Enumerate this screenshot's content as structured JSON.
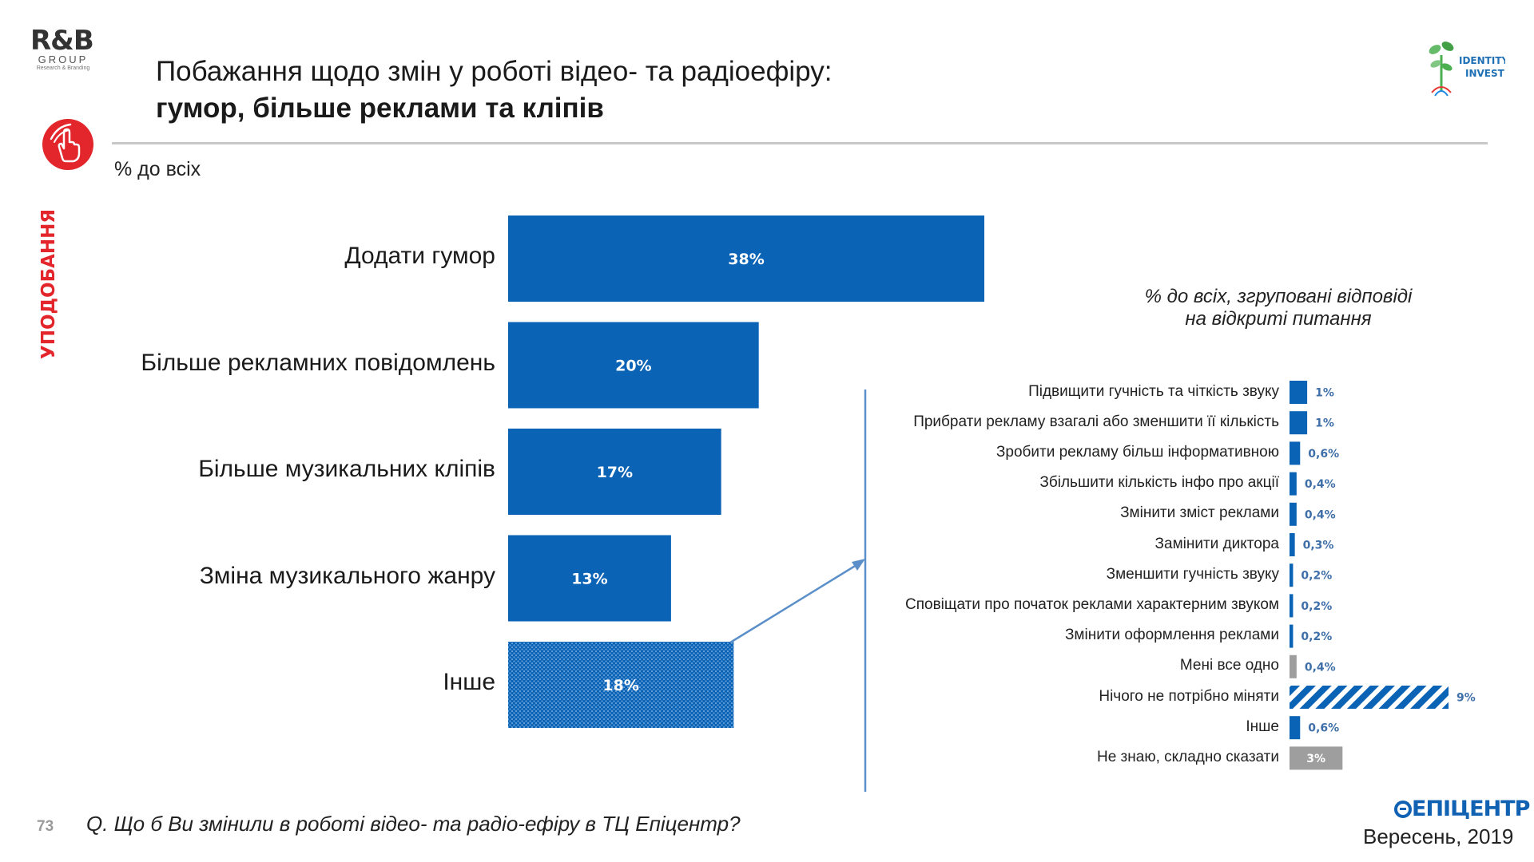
{
  "header": {
    "title_line1": "Побажання щодо змін у роботі відео- та радіоефіру:",
    "title_line2": "гумор, більше реклами та кліпів",
    "logo_rb": {
      "main": "R&B",
      "sub": "GROUP",
      "tagline": "Research & Branding"
    },
    "logo_identity": {
      "line1": "IDENTITY",
      "line2": "INVEST"
    }
  },
  "sidebar": {
    "label": "УПОДОБАННЯ",
    "accent_color": "#e3262b",
    "icon": "hand-pointer-icon"
  },
  "left_chart_subtitle": "% до всіх",
  "right_chart_subtitle": {
    "line1": "% до всіх, згруповані відповіді",
    "line2": "на відкриті питання"
  },
  "chart_data": [
    {
      "type": "bar",
      "orientation": "horizontal",
      "categories": [
        "Додати гумор",
        "Більше рекламних повідомлень",
        "Більше музикальних кліпів",
        "Зміна музикального жанру",
        "Інше"
      ],
      "values": [
        38,
        20,
        17,
        13,
        18
      ],
      "value_labels": [
        "38%",
        "20%",
        "17%",
        "13%",
        "18%"
      ],
      "patterns": [
        "solid",
        "solid",
        "solid",
        "solid",
        "dotted"
      ],
      "color": "#0b63b6",
      "xlim": [
        0,
        38
      ]
    },
    {
      "type": "bar",
      "orientation": "horizontal",
      "categories": [
        "Підвищити гучність та чіткість звуку",
        "Прибрати рекламу взагалі або зменшити її кількість",
        "Зробити рекламу більш інформативною",
        "Збільшити кількість інфо про акції",
        "Змінити зміст реклами",
        "Замінити диктора",
        "Зменшити гучність звуку",
        "Сповіщати про початок реклами характерним звуком",
        "Змінити оформлення реклами",
        "Мені все одно",
        "Нічого не потрібно міняти",
        "Інше",
        "Не знаю, складно сказати"
      ],
      "values": [
        1,
        1,
        0.6,
        0.4,
        0.4,
        0.3,
        0.2,
        0.2,
        0.2,
        0.4,
        9,
        0.6,
        3
      ],
      "value_labels": [
        "1%",
        "1%",
        "0,6%",
        "0,4%",
        "0,4%",
        "0,3%",
        "0,2%",
        "0,2%",
        "0,2%",
        "0,4%",
        "9%",
        "0,6%",
        "3%"
      ],
      "colors": [
        "#0b63b6",
        "#0b63b6",
        "#0b63b6",
        "#0b63b6",
        "#0b63b6",
        "#0b63b6",
        "#0b63b6",
        "#0b63b6",
        "#0b63b6",
        "#9e9e9e",
        "#0b63b6",
        "#0b63b6",
        "#9e9e9e"
      ],
      "patterns": [
        "solid",
        "solid",
        "solid",
        "solid",
        "solid",
        "solid",
        "solid",
        "solid",
        "solid",
        "solid",
        "striped",
        "solid",
        "solid"
      ],
      "xlim": [
        0,
        9
      ]
    }
  ],
  "footer": {
    "page_number": "73",
    "question": "Q. Що б Ви змінили в роботі відео- та радіо-ефіру в ТЦ Епіцентр?",
    "logo_epicentr": "ЕПІЦЕНТР",
    "date": "Вересень, 2019"
  }
}
